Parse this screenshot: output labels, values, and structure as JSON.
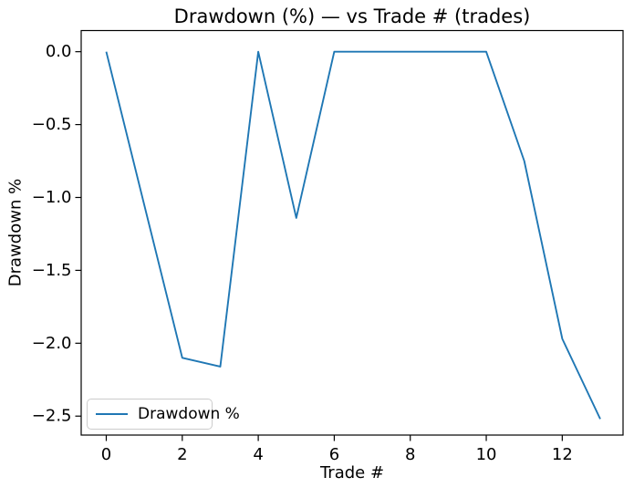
{
  "chart_data": {
    "type": "line",
    "title": "Drawdown (%) — vs Trade # (trades)",
    "xlabel": "Trade #",
    "ylabel": "Drawdown %",
    "x": [
      0,
      1,
      2,
      3,
      4,
      5,
      6,
      7,
      8,
      9,
      10,
      11,
      12,
      13
    ],
    "series": [
      {
        "name": "Drawdown %",
        "values": [
          0.0,
          -1.05,
          -2.1,
          -2.16,
          0.0,
          -1.14,
          0.0,
          0.0,
          0.0,
          0.0,
          0.0,
          -0.75,
          -1.97,
          -2.52
        ],
        "color": "#1f77b4"
      }
    ],
    "xlim": [
      -0.66,
      13.6
    ],
    "ylim": [
      -2.63,
      0.145
    ],
    "xticks": {
      "values": [
        0,
        2,
        4,
        6,
        8,
        10,
        12
      ],
      "labels": [
        "0",
        "2",
        "4",
        "6",
        "8",
        "10",
        "12"
      ]
    },
    "yticks": {
      "values": [
        0.0,
        -0.5,
        -1.0,
        -1.5,
        -2.0,
        -2.5
      ],
      "labels": [
        "0.0",
        "−0.5",
        "−1.0",
        "−1.5",
        "−2.0",
        "−2.5"
      ]
    },
    "grid": false,
    "legend": {
      "position": "lower left",
      "entries": [
        {
          "label": "Drawdown %",
          "color": "#1f77b4"
        }
      ]
    },
    "background": "#ffffff",
    "spine_color": "#000000"
  }
}
